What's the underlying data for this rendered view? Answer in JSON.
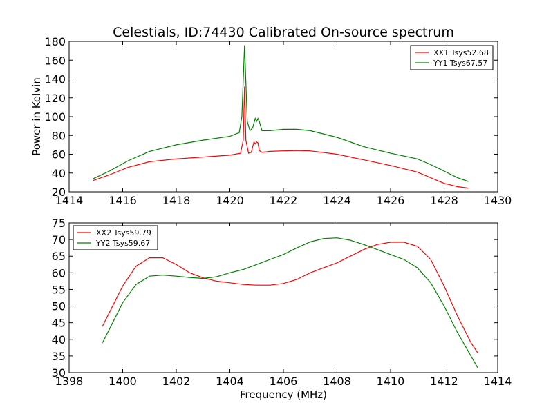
{
  "chart_data": [
    {
      "type": "line",
      "title": "Celestials, ID:74430 Calibrated On-source spectrum",
      "xlabel": "",
      "ylabel": "Power in Kelvin",
      "xlim": [
        1414,
        1430
      ],
      "ylim": [
        20,
        180
      ],
      "xticks": [
        1414,
        1416,
        1418,
        1420,
        1422,
        1424,
        1426,
        1428,
        1430
      ],
      "yticks": [
        20,
        40,
        60,
        80,
        100,
        120,
        140,
        160,
        180
      ],
      "grid": false,
      "legend_position": "top-right",
      "series": [
        {
          "name": "XX1 Tsys52.68",
          "color": "#ff0000",
          "x": [
            1414.9,
            1415.5,
            1416.2,
            1417.0,
            1418.0,
            1419.0,
            1420.0,
            1420.4,
            1420.5,
            1420.55,
            1420.6,
            1420.7,
            1420.8,
            1420.9,
            1420.95,
            1421.0,
            1421.05,
            1421.1,
            1421.2,
            1421.5,
            1422.0,
            1422.5,
            1423.0,
            1424.0,
            1425.0,
            1426.0,
            1427.0,
            1427.5,
            1428.0,
            1428.5,
            1428.9
          ],
          "y": [
            32,
            38,
            46,
            52,
            55,
            57,
            59,
            61,
            75,
            132,
            75,
            61,
            62,
            73,
            71,
            73,
            72,
            64,
            62,
            63,
            63.5,
            64,
            63.5,
            60,
            54,
            48,
            41,
            35,
            29,
            25.5,
            24
          ]
        },
        {
          "name": "YY1 Tsys67.57",
          "color": "#008000",
          "x": [
            1414.9,
            1415.5,
            1416.2,
            1417.0,
            1418.0,
            1419.0,
            1420.0,
            1420.35,
            1420.45,
            1420.55,
            1420.65,
            1420.75,
            1420.85,
            1420.95,
            1421.0,
            1421.05,
            1421.1,
            1421.2,
            1421.5,
            1422.0,
            1422.5,
            1423.0,
            1424.0,
            1425.0,
            1426.0,
            1427.0,
            1427.5,
            1428.0,
            1428.5,
            1428.9
          ],
          "y": [
            34,
            42,
            53,
            63,
            70,
            75,
            79,
            83,
            100,
            176,
            95,
            85,
            88,
            98,
            95,
            98,
            95,
            85,
            85,
            86.5,
            86.5,
            85,
            78,
            68,
            61,
            55,
            49,
            42,
            35,
            31
          ]
        }
      ]
    },
    {
      "type": "line",
      "title": "",
      "xlabel": "Frequency (MHz)",
      "ylabel": "",
      "xlim": [
        1398,
        1414
      ],
      "ylim": [
        30,
        75
      ],
      "xticks": [
        1398,
        1400,
        1402,
        1404,
        1406,
        1408,
        1410,
        1412,
        1414
      ],
      "yticks": [
        30,
        35,
        40,
        45,
        50,
        55,
        60,
        65,
        70,
        75
      ],
      "grid": false,
      "legend_position": "top-left",
      "series": [
        {
          "name": "XX2 Tsys59.79",
          "color": "#ff0000",
          "x": [
            1399.25,
            1399.5,
            1400.0,
            1400.5,
            1401.0,
            1401.5,
            1402.0,
            1402.5,
            1403.0,
            1403.5,
            1404.0,
            1404.5,
            1405.0,
            1405.5,
            1406.0,
            1406.5,
            1407.0,
            1407.5,
            1408.0,
            1408.5,
            1409.0,
            1409.5,
            1410.0,
            1410.5,
            1411.0,
            1411.5,
            1412.0,
            1412.5,
            1413.0,
            1413.25
          ],
          "y": [
            44,
            48,
            56,
            62,
            64.5,
            64.5,
            62.5,
            60,
            58.5,
            57.5,
            57,
            56.5,
            56.3,
            56.3,
            56.8,
            58,
            60,
            61.5,
            63,
            65,
            67,
            68.5,
            69.2,
            69.2,
            68,
            64,
            56,
            47,
            39,
            36
          ]
        },
        {
          "name": "YY2 Tsys59.67",
          "color": "#008000",
          "x": [
            1399.25,
            1399.5,
            1400.0,
            1400.5,
            1401.0,
            1401.5,
            1402.0,
            1402.5,
            1403.0,
            1403.5,
            1404.0,
            1404.5,
            1405.0,
            1405.5,
            1406.0,
            1406.5,
            1407.0,
            1407.5,
            1408.0,
            1408.5,
            1409.0,
            1409.5,
            1410.0,
            1410.5,
            1411.0,
            1411.5,
            1412.0,
            1412.5,
            1413.0,
            1413.25
          ],
          "y": [
            39,
            43,
            51,
            56.5,
            59,
            59.3,
            59,
            58.6,
            58.3,
            58.8,
            60,
            61,
            62.5,
            64,
            65.5,
            67.5,
            69.3,
            70.3,
            70.5,
            69.8,
            68.5,
            67,
            65.5,
            64,
            61.5,
            57,
            50,
            42,
            35,
            31.5
          ]
        }
      ]
    }
  ]
}
